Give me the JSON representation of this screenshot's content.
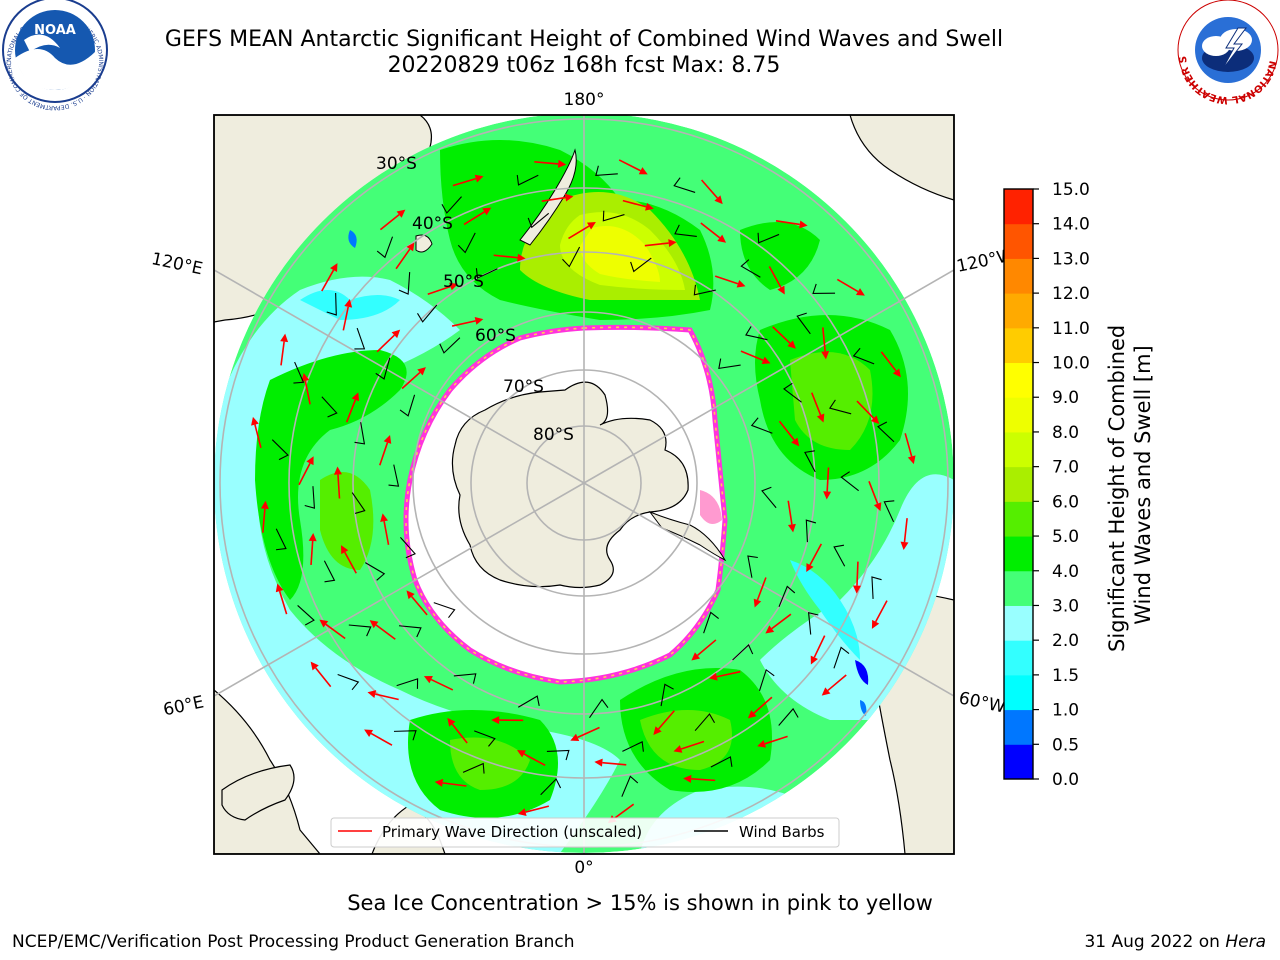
{
  "header": {
    "title_line1": "GEFS MEAN Antarctic Significant Height of Combined Wind Waves and Swell",
    "title_line2": "20220829 t06z 168h fcst   Max: 8.75"
  },
  "logos": {
    "noaa_text": "NOAA",
    "noaa_ring_text": "NATIONAL OCEANIC AND ATMOSPHERIC ADMINISTRATION · U.S. DEPARTMENT OF COMMERCE",
    "nws_ring_text": "NATIONAL WEATHER SERVICE"
  },
  "map": {
    "projection": "south polar stereographic",
    "longitude_labels": {
      "top": "180°",
      "bottom": "0°",
      "upper_left": "120°E",
      "upper_right": "120°W",
      "lower_left": "60°E",
      "lower_right": "60°W"
    },
    "latitude_labels": [
      "30°S",
      "40°S",
      "50°S",
      "60°S",
      "70°S",
      "80°S"
    ],
    "colors": {
      "land": "#efedde",
      "sea_ice_interior": "#ffffff",
      "ice_edge_pink": "#ff33dd",
      "ice_edge_yellow": "#ffcc55",
      "wave_arrow": "#ff0000",
      "wind_barb": "#000000",
      "grid": "#b4b4b4"
    }
  },
  "legend": {
    "entries": [
      {
        "label": "Primary Wave Direction (unscaled)",
        "color": "#ff0000"
      },
      {
        "label": "Wind Barbs",
        "color": "#000000"
      }
    ]
  },
  "colorbar": {
    "label_line1": "Significant Height of Combined",
    "label_line2": "Wind Waves and Swell [m]",
    "ticks": [
      "0.0",
      "0.5",
      "1.0",
      "1.5",
      "2.0",
      "3.0",
      "4.0",
      "5.0",
      "6.0",
      "7.0",
      "8.0",
      "9.0",
      "10.0",
      "11.0",
      "12.0",
      "13.0",
      "14.0",
      "15.0"
    ],
    "colors": [
      "#0000ff",
      "#0077ff",
      "#00ffff",
      "#33ffff",
      "#99ffff",
      "#44ff77",
      "#00ee00",
      "#55ee00",
      "#aaee00",
      "#ccff00",
      "#eeff00",
      "#ffff00",
      "#ffcc00",
      "#ffaa00",
      "#ff8800",
      "#ff5500",
      "#ff2200"
    ]
  },
  "notes": {
    "ice_note": "Sea Ice Concentration > 15% is shown in pink to yellow",
    "footer_left": "NCEP/EMC/Verification Post Processing Product Generation Branch",
    "footer_date": "31 Aug 2022 on ",
    "footer_machine": "Hera"
  }
}
